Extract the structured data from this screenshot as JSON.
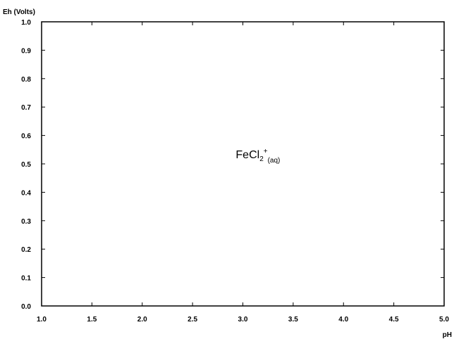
{
  "chart_data": {
    "type": "scatter",
    "title": "",
    "xlabel": "pH",
    "ylabel": "Eh (Volts)",
    "xlim": [
      1.0,
      5.0
    ],
    "ylim": [
      0.0,
      1.0
    ],
    "x_ticks": [
      "1.0",
      "1.5",
      "2.0",
      "2.5",
      "3.0",
      "3.5",
      "4.0",
      "4.5",
      "5.0"
    ],
    "y_ticks": [
      "0.0",
      "0.1",
      "0.2",
      "0.3",
      "0.4",
      "0.5",
      "0.6",
      "0.7",
      "0.8",
      "0.9",
      "1.0"
    ],
    "grid": false,
    "series": [],
    "annotations": [
      {
        "base": "FeCl",
        "sub1": "2",
        "sup": "+",
        "sub2": "(aq)",
        "x": 3.15,
        "y": 0.52
      }
    ]
  }
}
